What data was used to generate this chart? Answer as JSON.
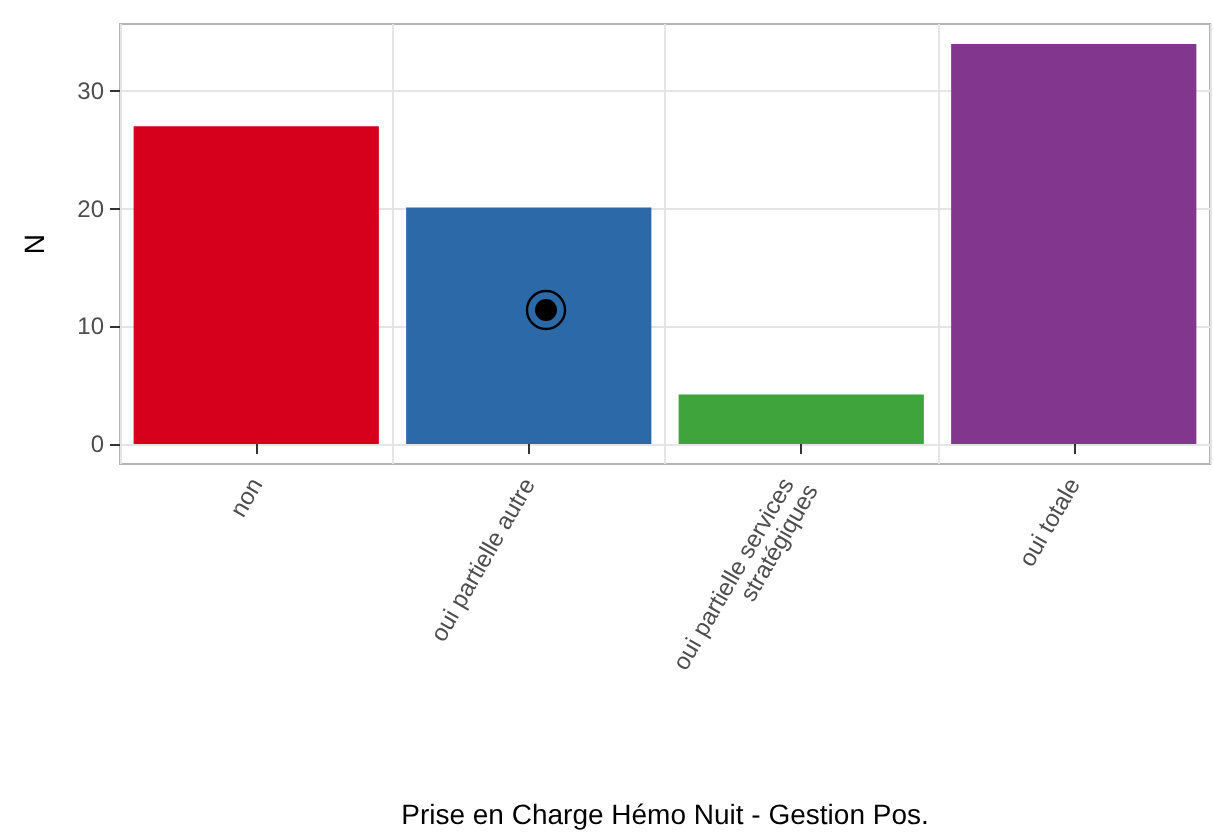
{
  "chart_data": {
    "type": "bar",
    "xlabel": "Prise en Charge Hémo Nuit - Gestion Pos.",
    "ylabel": "N",
    "categories": [
      "non",
      "oui partielle autre",
      "oui partielle services stratégiques",
      "oui totale"
    ],
    "values": [
      27,
      20.1,
      4.2,
      34
    ],
    "colors": [
      "#d7001c",
      "#2c69a8",
      "#40a43c",
      "#82368e"
    ],
    "ylim": [
      -1.7,
      35.7
    ],
    "yticks": [
      0,
      10,
      20,
      30
    ],
    "grid": true
  }
}
